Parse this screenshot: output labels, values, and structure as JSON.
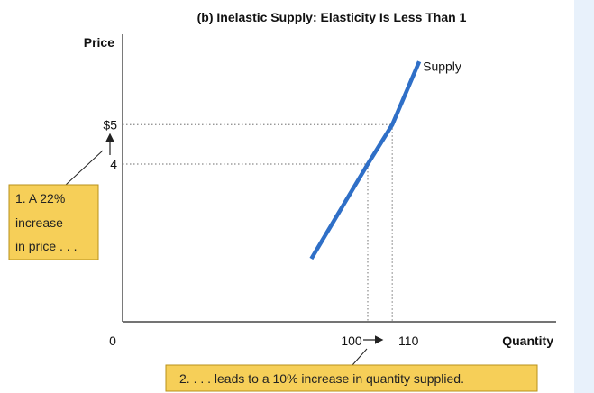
{
  "chart_data": {
    "type": "line",
    "title": "(b) Inelastic Supply: Elasticity Is Less Than 1",
    "ylabel": "Price",
    "xlabel": "Quantity",
    "origin_label": "0",
    "xlim": [
      0,
      130
    ],
    "ylim": [
      0,
      7.4
    ],
    "y_ticks": [
      {
        "value": 4,
        "label": "4"
      },
      {
        "value": 5,
        "label": "$5"
      }
    ],
    "x_ticks": [
      {
        "value": 100,
        "label": "100"
      },
      {
        "value": 110,
        "label": "110"
      }
    ],
    "series": [
      {
        "name": "Supply",
        "points": [
          {
            "x": 77,
            "y": 1.6
          },
          {
            "x": 100,
            "y": 4
          },
          {
            "x": 110,
            "y": 5
          },
          {
            "x": 121,
            "y": 6.6
          }
        ]
      }
    ],
    "reference_points": [
      {
        "x": 100,
        "y": 4
      },
      {
        "x": 110,
        "y": 5
      }
    ],
    "annotations": [
      {
        "lines": [
          "1. A 22%",
          "increase",
          "in price . . ."
        ]
      },
      {
        "lines": [
          "2. . . . leads to a 10% increase in quantity supplied."
        ]
      }
    ]
  },
  "colors": {
    "supply_line": "#2f6fc7",
    "axis": "#222222",
    "guide": "#8a8a8a",
    "annotation_fill": "#f6cf58",
    "annotation_border": "#b8901a",
    "side_panel": "#e8f1fb"
  }
}
